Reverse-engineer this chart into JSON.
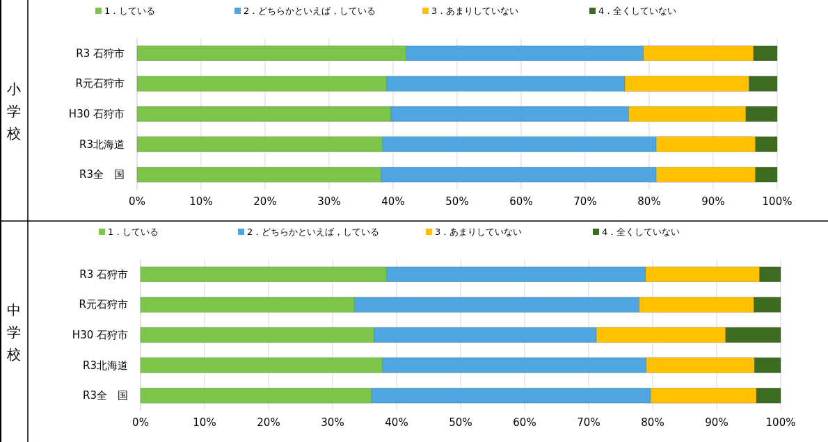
{
  "chart_data": [
    {
      "type": "bar",
      "orientation": "horizontal",
      "stacked": true,
      "ylabel": "小学校",
      "categories": [
        "R3 石狩市",
        "R元石狩市",
        "H30 石狩市",
        "R3北海道",
        "R3全　国"
      ],
      "series": [
        {
          "name": "1．している",
          "color": "#7cc44a",
          "values": [
            42.0,
            39.0,
            39.6,
            38.3,
            38.1
          ]
        },
        {
          "name": "2．どちらかといえば，している",
          "color": "#4ea5e0",
          "values": [
            37.1,
            37.2,
            37.2,
            42.8,
            43.0
          ]
        },
        {
          "name": "3．あまりしていない",
          "color": "#ffc000",
          "values": [
            17.2,
            19.4,
            18.3,
            15.5,
            15.5
          ]
        },
        {
          "name": "4．全くしていない",
          "color": "#3d6b22",
          "values": [
            3.7,
            4.4,
            4.9,
            3.4,
            3.4
          ]
        }
      ],
      "xlim": [
        0,
        100
      ],
      "xticks": [
        {
          "value": 0,
          "label": "0%"
        },
        {
          "value": 10,
          "label": "10%"
        },
        {
          "value": 20,
          "label": "20%"
        },
        {
          "value": 30,
          "label": "30%"
        },
        {
          "value": 40,
          "label": "40%"
        },
        {
          "value": 50,
          "label": "50%"
        },
        {
          "value": 60,
          "label": "60%"
        },
        {
          "value": 70,
          "label": "70%"
        },
        {
          "value": 80,
          "label": "80%"
        },
        {
          "value": 90,
          "label": "90%"
        },
        {
          "value": 100,
          "label": "100%"
        }
      ],
      "grid": "x",
      "legend": "top"
    },
    {
      "type": "bar",
      "orientation": "horizontal",
      "stacked": true,
      "ylabel": "中学校",
      "categories": [
        "R3 石狩市",
        "R元石狩市",
        "H30 石狩市",
        "R3北海道",
        "R3全　国"
      ],
      "series": [
        {
          "name": "1．している",
          "color": "#7cc44a",
          "values": [
            38.4,
            33.4,
            36.5,
            37.8,
            36.1
          ]
        },
        {
          "name": "2．どちらかといえば，している",
          "color": "#4ea5e0",
          "values": [
            40.5,
            44.5,
            34.7,
            41.2,
            43.6
          ]
        },
        {
          "name": "3．あまりしていない",
          "color": "#ffc000",
          "values": [
            17.8,
            17.9,
            20.2,
            16.9,
            16.5
          ]
        },
        {
          "name": "4．全くしていない",
          "color": "#3d6b22",
          "values": [
            3.3,
            4.2,
            8.6,
            4.1,
            3.8
          ]
        }
      ],
      "xlim": [
        0,
        100
      ],
      "xticks": [
        {
          "value": 0,
          "label": "0%"
        },
        {
          "value": 10,
          "label": "10%"
        },
        {
          "value": 20,
          "label": "20%"
        },
        {
          "value": 30,
          "label": "30%"
        },
        {
          "value": 40,
          "label": "40%"
        },
        {
          "value": 50,
          "label": "50%"
        },
        {
          "value": 60,
          "label": "60%"
        },
        {
          "value": 70,
          "label": "70%"
        },
        {
          "value": 80,
          "label": "80%"
        },
        {
          "value": 90,
          "label": "90%"
        },
        {
          "value": 100,
          "label": "100%"
        }
      ],
      "grid": "x",
      "legend": "top"
    }
  ]
}
